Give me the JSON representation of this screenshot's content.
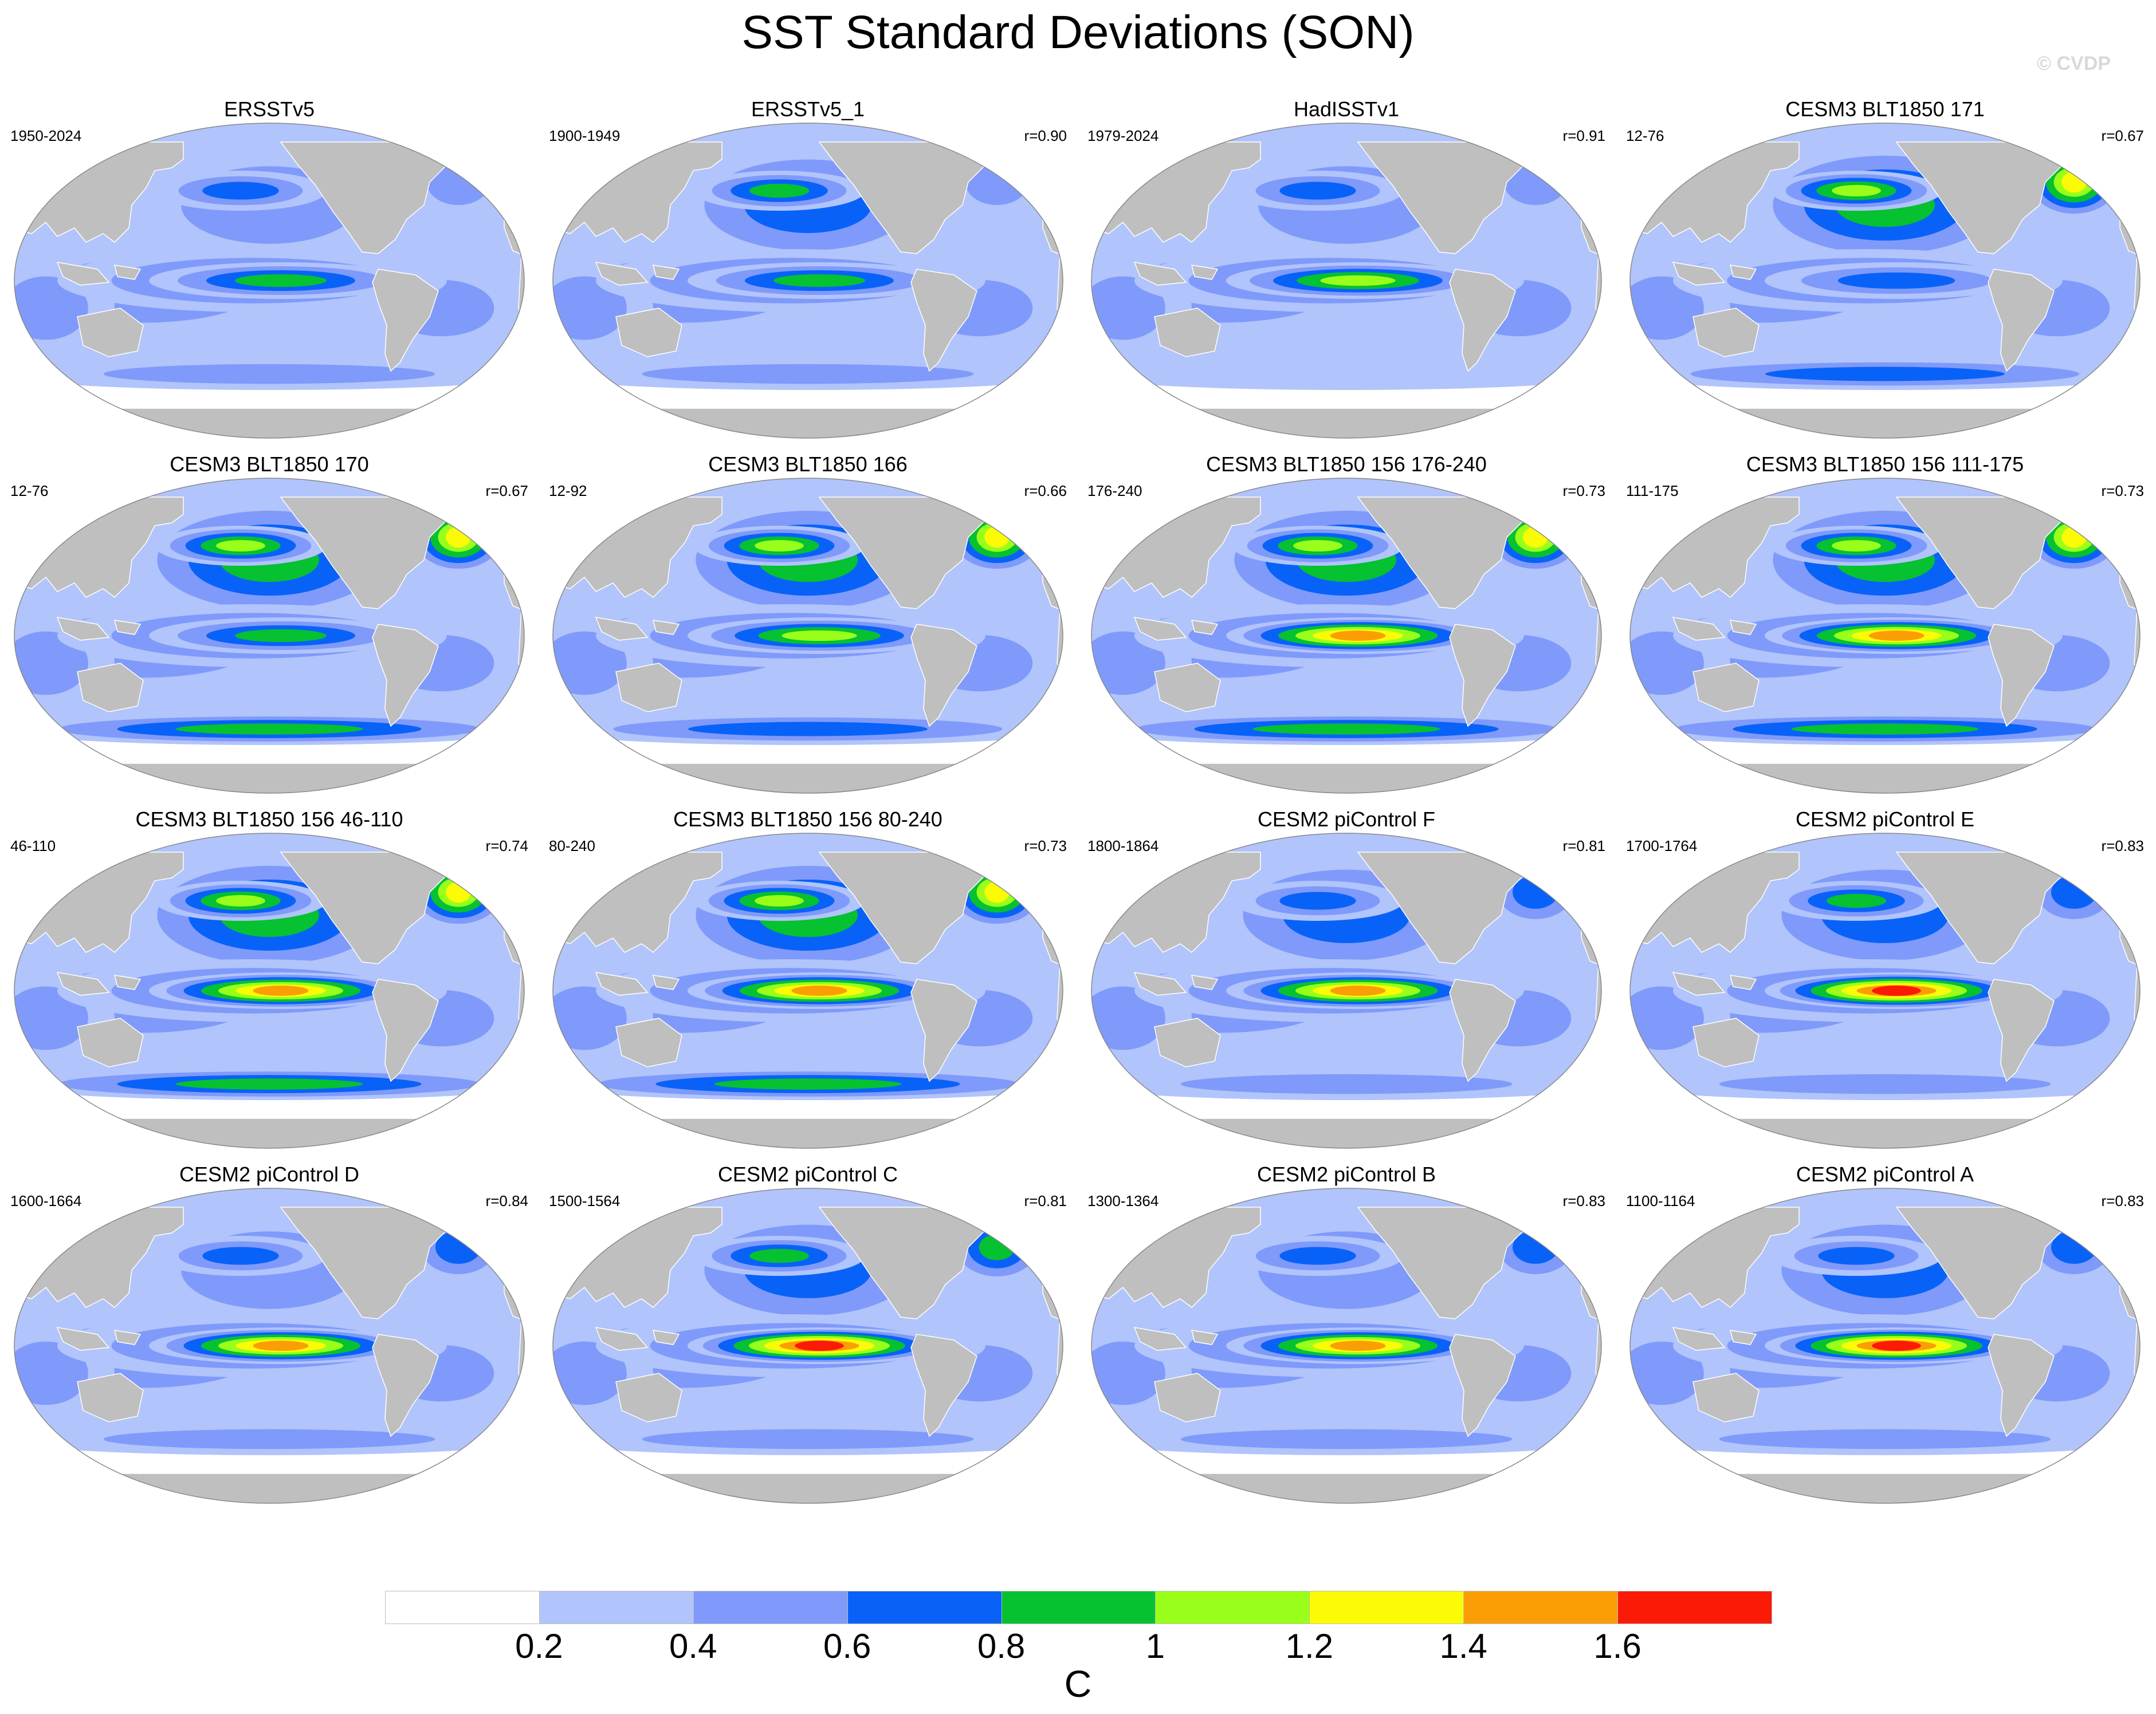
{
  "title": "SST Standard Deviations (SON)",
  "watermark": "© CVDP",
  "colors": {
    "land": "#bfbfbf",
    "ocean_base": "#b1c4fb",
    "levels": [
      "#ffffff",
      "#b1c4fb",
      "#7f9afa",
      "#0862f8",
      "#06c130",
      "#99ff1a",
      "#fbfb06",
      "#fb9e06",
      "#fb1a06"
    ]
  },
  "panels": [
    {
      "title": "ERSSTv5",
      "years": "1950-2024",
      "corr": "",
      "enso": 0.95,
      "np": 0.72,
      "ao": 0.6,
      "so": 0.45
    },
    {
      "title": "ERSSTv5_1",
      "years": "1900-1949",
      "corr": "r=0.90",
      "enso": 0.9,
      "np": 0.85,
      "ao": 0.55,
      "so": 0.5
    },
    {
      "title": "HadISSTv1",
      "years": "1979-2024",
      "corr": "r=0.91",
      "enso": 1.05,
      "np": 0.65,
      "ao": 0.45,
      "so": 0.3
    },
    {
      "title": "CESM3 BLT1850 171",
      "years": "12-76",
      "corr": "r=0.67",
      "enso": 0.7,
      "np": 1.1,
      "ao": 1.3,
      "so": 0.75
    },
    {
      "title": "CESM3 BLT1850 170",
      "years": "12-76",
      "corr": "r=0.67",
      "enso": 0.95,
      "np": 1.1,
      "ao": 1.3,
      "so": 0.8
    },
    {
      "title": "CESM3 BLT1850 166",
      "years": "12-92",
      "corr": "r=0.66",
      "enso": 1.05,
      "np": 1.15,
      "ao": 1.25,
      "so": 0.75
    },
    {
      "title": "CESM3 BLT1850 156 176-240",
      "years": "176-240",
      "corr": "r=0.73",
      "enso": 1.55,
      "np": 1.15,
      "ao": 1.3,
      "so": 0.8
    },
    {
      "title": "CESM3 BLT1850 156 111-175",
      "years": "111-175",
      "corr": "r=0.73",
      "enso": 1.45,
      "np": 1.1,
      "ao": 1.35,
      "so": 0.8
    },
    {
      "title": "CESM3 BLT1850 156 46-110",
      "years": "46-110",
      "corr": "r=0.74",
      "enso": 1.55,
      "np": 1.2,
      "ao": 1.3,
      "so": 0.85
    },
    {
      "title": "CESM3 BLT1850 156 80-240",
      "years": "80-240",
      "corr": "r=0.73",
      "enso": 1.5,
      "np": 1.2,
      "ao": 1.35,
      "so": 0.8
    },
    {
      "title": "CESM2 piControl F",
      "years": "1800-1864",
      "corr": "r=0.81",
      "enso": 1.5,
      "np": 0.75,
      "ao": 0.7,
      "so": 0.5
    },
    {
      "title": "CESM2 piControl E",
      "years": "1700-1764",
      "corr": "r=0.83",
      "enso": 1.65,
      "np": 0.85,
      "ao": 0.7,
      "so": 0.5
    },
    {
      "title": "CESM2 piControl D",
      "years": "1600-1664",
      "corr": "r=0.84",
      "enso": 1.55,
      "np": 0.7,
      "ao": 0.7,
      "so": 0.45
    },
    {
      "title": "CESM2 piControl C",
      "years": "1500-1564",
      "corr": "r=0.81",
      "enso": 1.7,
      "np": 0.8,
      "ao": 0.85,
      "so": 0.5
    },
    {
      "title": "CESM2 piControl B",
      "years": "1300-1364",
      "corr": "r=0.83",
      "enso": 1.5,
      "np": 0.7,
      "ao": 0.7,
      "so": 0.45
    },
    {
      "title": "CESM2 piControl A",
      "years": "1100-1164",
      "corr": "r=0.83",
      "enso": 1.6,
      "np": 0.75,
      "ao": 0.7,
      "so": 0.45
    }
  ],
  "colorbar": {
    "tick_labels": [
      "0.2",
      "0.4",
      "0.6",
      "0.8",
      "1",
      "1.2",
      "1.4",
      "1.6"
    ],
    "unit": "C"
  }
}
